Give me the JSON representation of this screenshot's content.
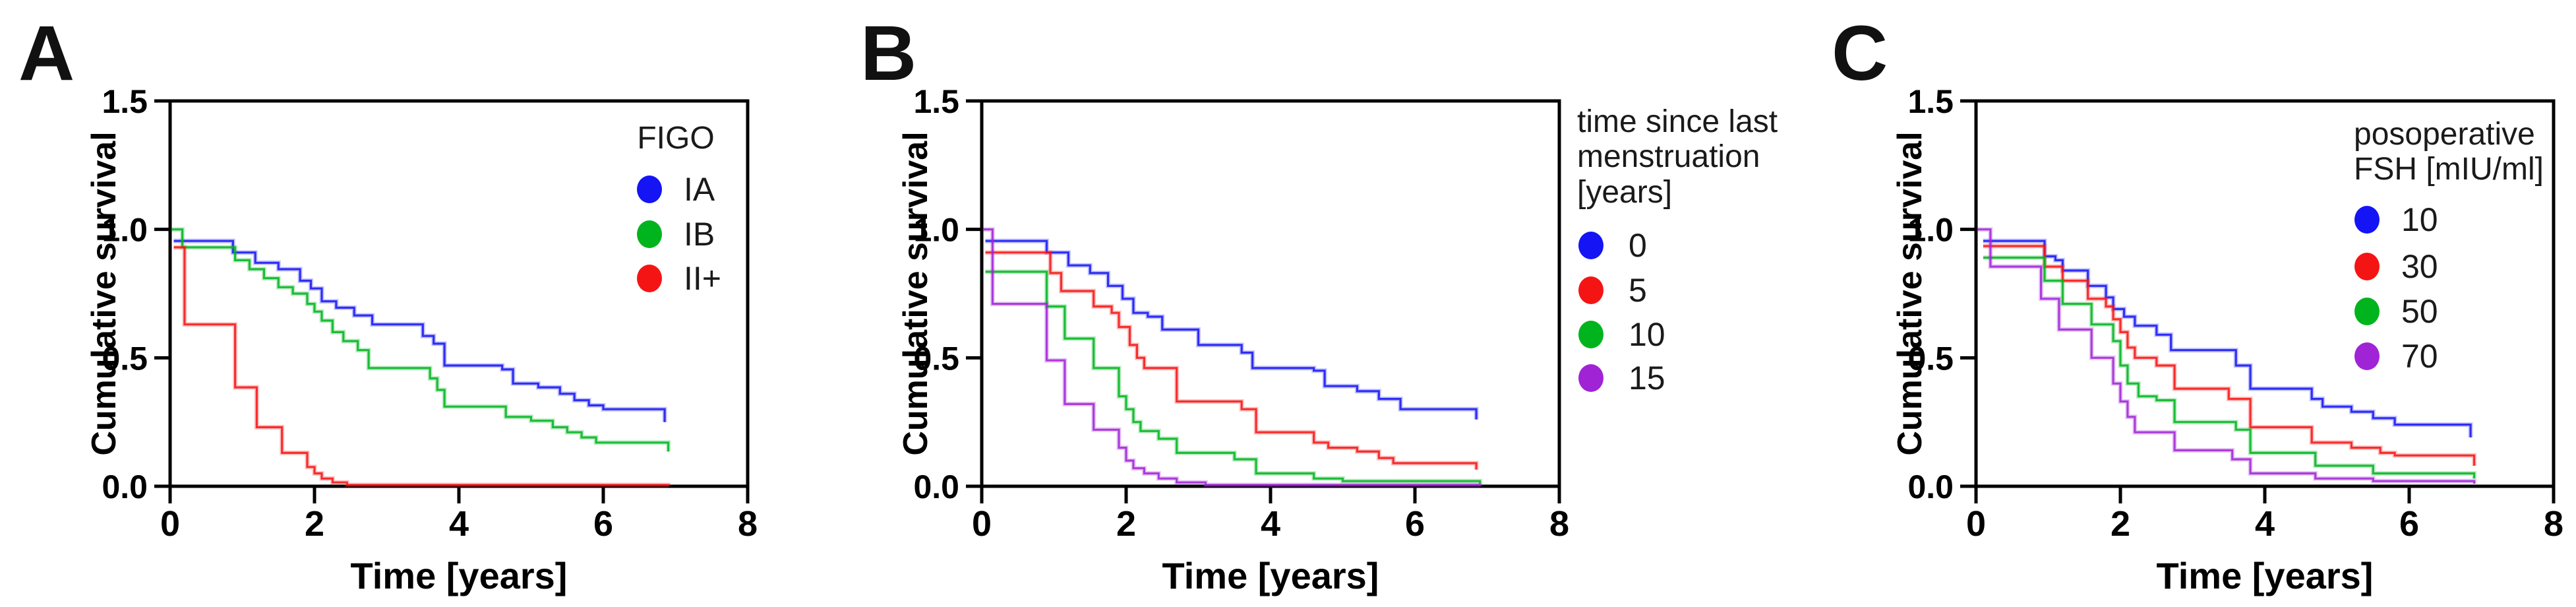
{
  "figure": {
    "background": "#ffffff",
    "axis_color": "#000000",
    "text_color": "#000000"
  },
  "chart_data": [
    {
      "type": "line",
      "subtype": "kaplan-meier-step",
      "panel_label": "A",
      "xlabel": "Time [years]",
      "ylabel": "Cumulative survival",
      "xlim": [
        0,
        8
      ],
      "ylim": [
        0,
        1.5
      ],
      "xticks": [
        "0",
        "2",
        "4",
        "6",
        "8"
      ],
      "yticks": [
        "0.0",
        "0.5",
        "1.0",
        "1.5"
      ],
      "grid": false,
      "legend_title_lines": [
        "FIGO"
      ],
      "legend_position": "inside-top-right",
      "series": [
        {
          "name": "IA",
          "color": "#1414f5",
          "points": [
            [
              0.05,
              0.955
            ],
            [
              0.87,
              0.91
            ],
            [
              1.18,
              0.87
            ],
            [
              1.5,
              0.845
            ],
            [
              1.8,
              0.8
            ],
            [
              1.95,
              0.77
            ],
            [
              2.1,
              0.72
            ],
            [
              2.3,
              0.695
            ],
            [
              2.55,
              0.665
            ],
            [
              2.8,
              0.63
            ],
            [
              3.5,
              0.585
            ],
            [
              3.65,
              0.555
            ],
            [
              3.8,
              0.47
            ],
            [
              4.6,
              0.455
            ],
            [
              4.75,
              0.4
            ],
            [
              5.1,
              0.385
            ],
            [
              5.4,
              0.36
            ],
            [
              5.6,
              0.335
            ],
            [
              5.8,
              0.315
            ],
            [
              6.0,
              0.3
            ],
            [
              6.85,
              0.25
            ]
          ]
        },
        {
          "name": "IB",
          "color": "#00b41e",
          "points": [
            [
              0.02,
              1.0
            ],
            [
              0.17,
              0.93
            ],
            [
              0.9,
              0.88
            ],
            [
              1.1,
              0.845
            ],
            [
              1.3,
              0.81
            ],
            [
              1.5,
              0.775
            ],
            [
              1.7,
              0.75
            ],
            [
              1.9,
              0.71
            ],
            [
              2.0,
              0.68
            ],
            [
              2.1,
              0.645
            ],
            [
              2.25,
              0.6
            ],
            [
              2.4,
              0.565
            ],
            [
              2.6,
              0.53
            ],
            [
              2.75,
              0.46
            ],
            [
              3.6,
              0.42
            ],
            [
              3.7,
              0.375
            ],
            [
              3.8,
              0.31
            ],
            [
              4.65,
              0.27
            ],
            [
              5.0,
              0.255
            ],
            [
              5.3,
              0.23
            ],
            [
              5.5,
              0.21
            ],
            [
              5.7,
              0.19
            ],
            [
              5.9,
              0.17
            ],
            [
              6.9,
              0.135
            ]
          ]
        },
        {
          "name": "II+",
          "color": "#f51414",
          "points": [
            [
              0.05,
              0.93
            ],
            [
              0.2,
              0.63
            ],
            [
              0.9,
              0.385
            ],
            [
              1.2,
              0.23
            ],
            [
              1.55,
              0.13
            ],
            [
              1.9,
              0.075
            ],
            [
              2.0,
              0.05
            ],
            [
              2.1,
              0.03
            ],
            [
              2.25,
              0.015
            ],
            [
              2.45,
              0.005
            ],
            [
              6.9,
              0.0
            ]
          ]
        }
      ]
    },
    {
      "type": "line",
      "subtype": "kaplan-meier-step",
      "panel_label": "B",
      "xlabel": "Time [years]",
      "ylabel": "Cumulative survival",
      "xlim": [
        0,
        8
      ],
      "ylim": [
        0,
        1.5
      ],
      "xticks": [
        "0",
        "2",
        "4",
        "6",
        "8"
      ],
      "yticks": [
        "0.0",
        "0.5",
        "1.0",
        "1.5"
      ],
      "grid": false,
      "legend_title_lines": [
        "time since last",
        "menstruation",
        "[years]"
      ],
      "legend_position": "outside-right",
      "series": [
        {
          "name": "0",
          "color": "#1414f5",
          "points": [
            [
              0.05,
              0.955
            ],
            [
              0.9,
              0.91
            ],
            [
              1.2,
              0.86
            ],
            [
              1.5,
              0.83
            ],
            [
              1.75,
              0.78
            ],
            [
              1.95,
              0.73
            ],
            [
              2.1,
              0.675
            ],
            [
              2.3,
              0.66
            ],
            [
              2.5,
              0.61
            ],
            [
              3.0,
              0.55
            ],
            [
              3.6,
              0.52
            ],
            [
              3.75,
              0.46
            ],
            [
              4.6,
              0.45
            ],
            [
              4.75,
              0.39
            ],
            [
              5.2,
              0.37
            ],
            [
              5.5,
              0.34
            ],
            [
              5.8,
              0.3
            ],
            [
              6.85,
              0.26
            ]
          ]
        },
        {
          "name": "5",
          "color": "#f51414",
          "points": [
            [
              0.05,
              0.91
            ],
            [
              0.95,
              0.83
            ],
            [
              1.1,
              0.76
            ],
            [
              1.55,
              0.7
            ],
            [
              1.8,
              0.675
            ],
            [
              1.9,
              0.62
            ],
            [
              2.05,
              0.55
            ],
            [
              2.15,
              0.5
            ],
            [
              2.25,
              0.46
            ],
            [
              2.7,
              0.33
            ],
            [
              3.6,
              0.3
            ],
            [
              3.8,
              0.21
            ],
            [
              4.6,
              0.17
            ],
            [
              4.8,
              0.15
            ],
            [
              5.2,
              0.135
            ],
            [
              5.5,
              0.11
            ],
            [
              5.7,
              0.09
            ],
            [
              6.85,
              0.065
            ]
          ]
        },
        {
          "name": "10",
          "color": "#00b41e",
          "points": [
            [
              0.05,
              0.835
            ],
            [
              0.9,
              0.7
            ],
            [
              1.15,
              0.575
            ],
            [
              1.55,
              0.46
            ],
            [
              1.9,
              0.35
            ],
            [
              2.0,
              0.3
            ],
            [
              2.1,
              0.25
            ],
            [
              2.2,
              0.215
            ],
            [
              2.45,
              0.185
            ],
            [
              2.7,
              0.13
            ],
            [
              3.5,
              0.105
            ],
            [
              3.8,
              0.05
            ],
            [
              4.6,
              0.03
            ],
            [
              5.0,
              0.02
            ],
            [
              6.9,
              0.01
            ]
          ]
        },
        {
          "name": "15",
          "color": "#a023d6",
          "points": [
            [
              0.02,
              1.0
            ],
            [
              0.15,
              0.71
            ],
            [
              0.9,
              0.49
            ],
            [
              1.15,
              0.32
            ],
            [
              1.55,
              0.22
            ],
            [
              1.9,
              0.15
            ],
            [
              2.0,
              0.1
            ],
            [
              2.1,
              0.07
            ],
            [
              2.25,
              0.05
            ],
            [
              2.45,
              0.03
            ],
            [
              2.7,
              0.015
            ],
            [
              3.1,
              0.005
            ],
            [
              6.9,
              0.0
            ]
          ]
        }
      ]
    },
    {
      "type": "line",
      "subtype": "kaplan-meier-step",
      "panel_label": "C",
      "xlabel": "Time [years]",
      "ylabel": "Cumulative survival",
      "xlim": [
        0,
        8
      ],
      "ylim": [
        0,
        1.5
      ],
      "xticks": [
        "0",
        "2",
        "4",
        "6",
        "8"
      ],
      "yticks": [
        "0.0",
        "0.5",
        "1.0",
        "1.5"
      ],
      "grid": false,
      "legend_title_lines": [
        "posoperative",
        "FSH [mIU/ml]"
      ],
      "legend_position": "inside-top-right",
      "series": [
        {
          "name": "10",
          "color": "#1414f5",
          "points": [
            [
              0.1,
              0.955
            ],
            [
              0.95,
              0.895
            ],
            [
              1.1,
              0.88
            ],
            [
              1.2,
              0.84
            ],
            [
              1.55,
              0.78
            ],
            [
              1.8,
              0.735
            ],
            [
              1.9,
              0.69
            ],
            [
              2.05,
              0.66
            ],
            [
              2.2,
              0.625
            ],
            [
              2.5,
              0.59
            ],
            [
              2.7,
              0.53
            ],
            [
              3.6,
              0.47
            ],
            [
              3.8,
              0.38
            ],
            [
              4.65,
              0.34
            ],
            [
              4.8,
              0.31
            ],
            [
              5.2,
              0.29
            ],
            [
              5.5,
              0.265
            ],
            [
              5.8,
              0.24
            ],
            [
              6.85,
              0.19
            ]
          ]
        },
        {
          "name": "30",
          "color": "#f51414",
          "points": [
            [
              0.1,
              0.935
            ],
            [
              0.95,
              0.855
            ],
            [
              1.2,
              0.8
            ],
            [
              1.55,
              0.73
            ],
            [
              1.8,
              0.7
            ],
            [
              1.9,
              0.65
            ],
            [
              2.0,
              0.6
            ],
            [
              2.1,
              0.54
            ],
            [
              2.2,
              0.5
            ],
            [
              2.5,
              0.47
            ],
            [
              2.75,
              0.38
            ],
            [
              3.5,
              0.34
            ],
            [
              3.8,
              0.23
            ],
            [
              4.65,
              0.17
            ],
            [
              5.2,
              0.15
            ],
            [
              5.6,
              0.13
            ],
            [
              5.8,
              0.12
            ],
            [
              6.9,
              0.08
            ]
          ]
        },
        {
          "name": "50",
          "color": "#00b41e",
          "points": [
            [
              0.1,
              0.89
            ],
            [
              0.95,
              0.8
            ],
            [
              1.2,
              0.71
            ],
            [
              1.6,
              0.63
            ],
            [
              1.9,
              0.565
            ],
            [
              2.0,
              0.47
            ],
            [
              2.1,
              0.4
            ],
            [
              2.25,
              0.35
            ],
            [
              2.5,
              0.335
            ],
            [
              2.75,
              0.25
            ],
            [
              3.6,
              0.22
            ],
            [
              3.8,
              0.13
            ],
            [
              4.7,
              0.08
            ],
            [
              5.5,
              0.05
            ],
            [
              6.9,
              0.03
            ]
          ]
        },
        {
          "name": "70",
          "color": "#a023d6",
          "points": [
            [
              0.02,
              1.0
            ],
            [
              0.2,
              0.855
            ],
            [
              0.9,
              0.73
            ],
            [
              1.15,
              0.61
            ],
            [
              1.6,
              0.5
            ],
            [
              1.9,
              0.4
            ],
            [
              2.0,
              0.33
            ],
            [
              2.1,
              0.27
            ],
            [
              2.2,
              0.21
            ],
            [
              2.75,
              0.14
            ],
            [
              3.55,
              0.105
            ],
            [
              3.8,
              0.05
            ],
            [
              4.7,
              0.03
            ],
            [
              5.5,
              0.02
            ],
            [
              6.9,
              0.01
            ]
          ]
        }
      ]
    }
  ]
}
